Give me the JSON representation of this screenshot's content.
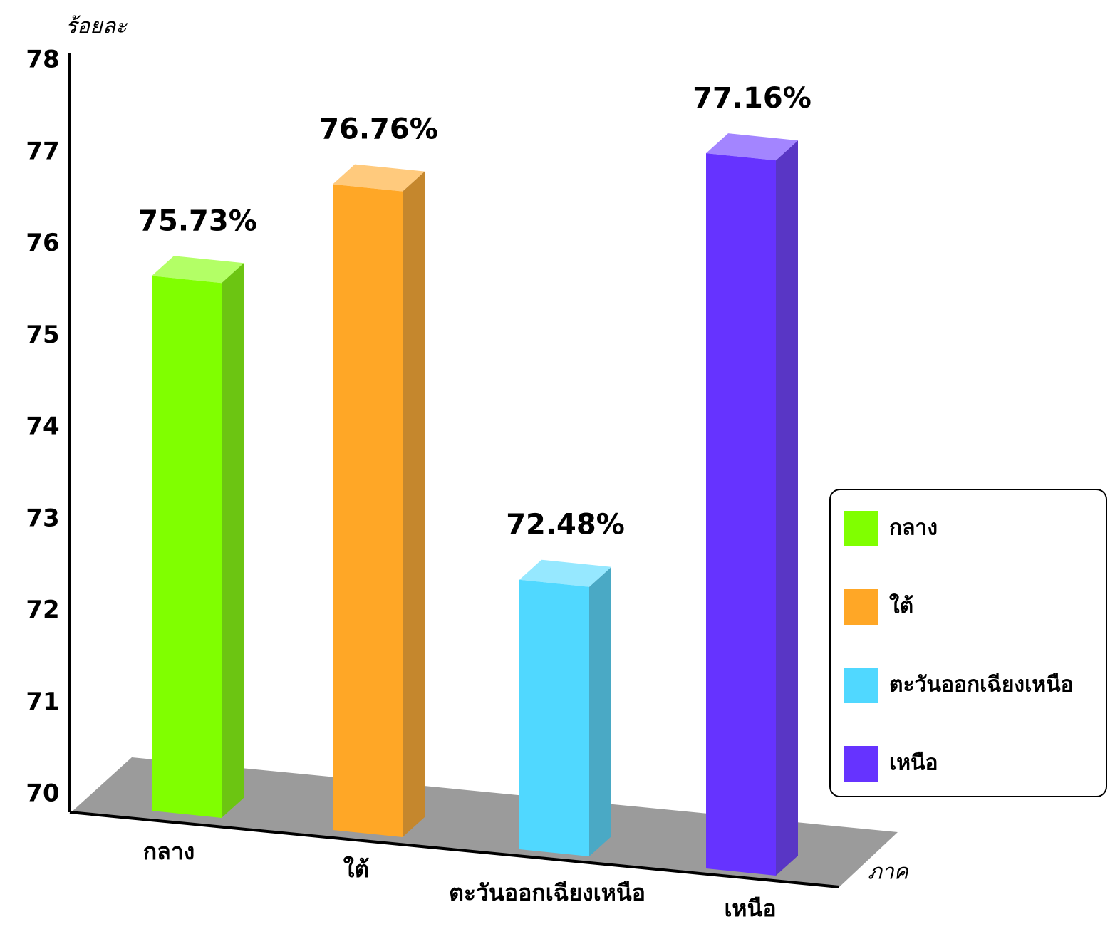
{
  "chart_data": {
    "type": "bar3d",
    "ylabel": "ร้อยละ",
    "xlabel": "ภาค",
    "categories": [
      "กลาง",
      "ใต้",
      "ตะวันออกเฉียงเหนือ",
      "เหนือ"
    ],
    "values": [
      75.73,
      76.76,
      72.48,
      77.16
    ],
    "value_labels": [
      "75.73%",
      "76.76%",
      "72.48%",
      "77.16%"
    ],
    "colors": [
      "#80ff00",
      "#ffa726",
      "#50d8ff",
      "#6633ff"
    ],
    "ylim": [
      70,
      78
    ],
    "yticks": [
      70,
      71,
      72,
      73,
      74,
      75,
      76,
      77,
      78
    ],
    "grid": false,
    "legend": "right"
  }
}
